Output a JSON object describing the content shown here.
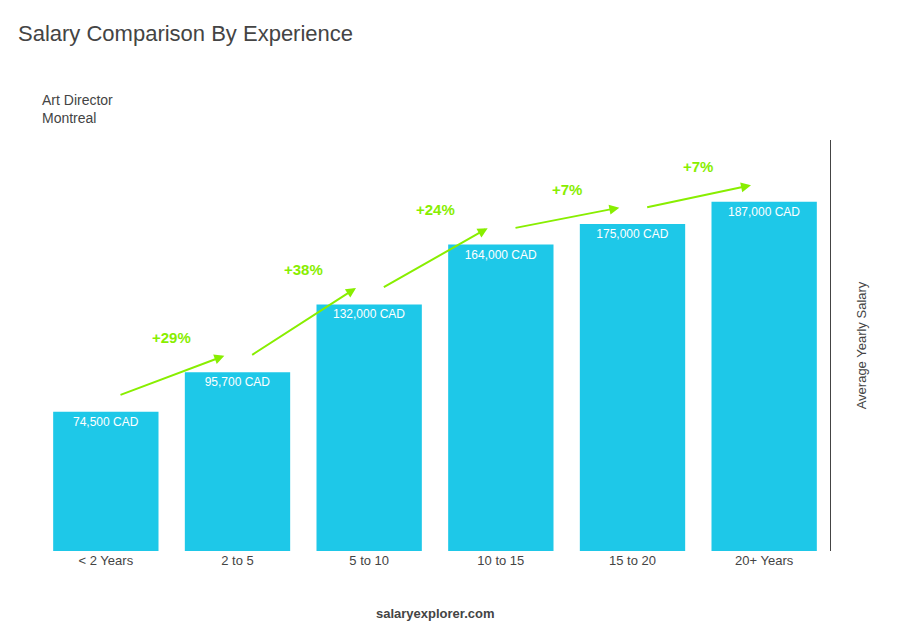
{
  "chart_data": {
    "type": "bar",
    "title": "Salary Comparison By Experience",
    "subtitle": [
      "Art Director",
      "Montreal"
    ],
    "categories": [
      "< 2 Years",
      "2 to 5",
      "5 to 10",
      "10 to 15",
      "15 to 20",
      "20+ Years"
    ],
    "values": [
      74500,
      95700,
      132000,
      164000,
      175000,
      187000
    ],
    "value_labels": [
      "74,500 CAD",
      "95,700 CAD",
      "132,000 CAD",
      "164,000 CAD",
      "175,000 CAD",
      "187,000 CAD"
    ],
    "data_labels": true,
    "color": "#1ec8e8",
    "ylabel": "Average Yearly Salary",
    "ylim": [
      0,
      220000
    ],
    "tick_labels": "x",
    "grid": false,
    "annotations": [
      {
        "text": "+29%",
        "from": "< 2 Years",
        "to": "2 to 5",
        "color": "#88ee00"
      },
      {
        "text": "+38%",
        "from": "2 to 5",
        "to": "5 to 10",
        "color": "#88ee00"
      },
      {
        "text": "+24%",
        "from": "5 to 10",
        "to": "10 to 15",
        "color": "#88ee00"
      },
      {
        "text": "+7%",
        "from": "10 to 15",
        "to": "15 to 20",
        "color": "#88ee00"
      },
      {
        "text": "+7%",
        "from": "15 to 20",
        "to": "20+ Years",
        "color": "#88ee00"
      }
    ],
    "footer": "salaryexplorer.com"
  }
}
